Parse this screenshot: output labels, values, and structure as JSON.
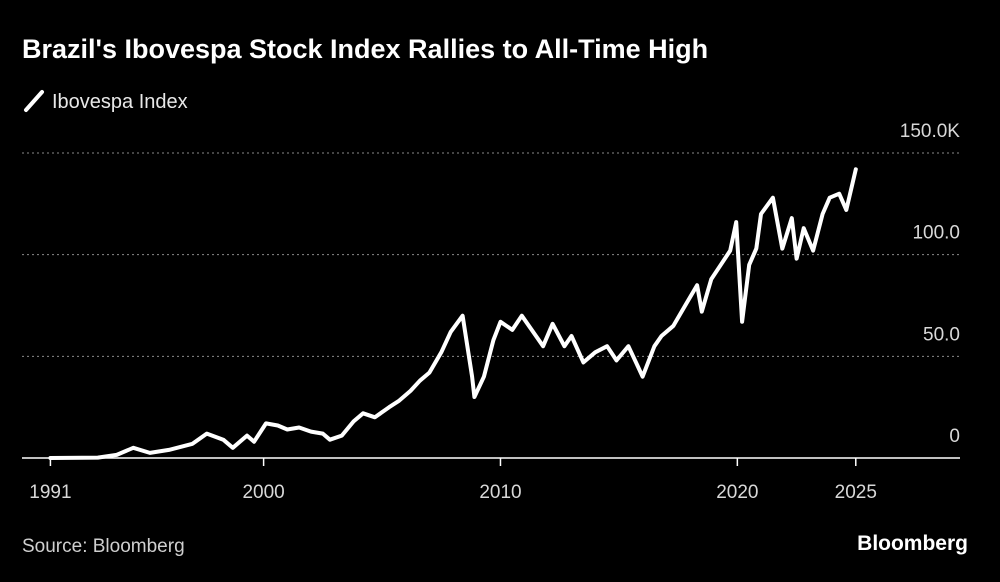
{
  "chart_data": {
    "type": "line",
    "title": "Brazil's Ibovespa Stock Index Rallies to All-Time High",
    "source": "Source: Bloomberg",
    "brand": "Bloomberg",
    "x": [
      1991.0,
      1993.0,
      1993.8,
      1994.5,
      1995.2,
      1996.0,
      1997.0,
      1997.6,
      1998.3,
      1998.7,
      1999.3,
      1999.6,
      2000.1,
      2000.6,
      2001.0,
      2001.5,
      2002.0,
      2002.5,
      2002.8,
      2003.3,
      2003.8,
      2004.2,
      2004.7,
      2005.3,
      2005.7,
      2006.2,
      2006.6,
      2007.0,
      2007.5,
      2007.9,
      2008.4,
      2008.8,
      2008.9,
      2009.3,
      2009.7,
      2010.0,
      2010.5,
      2010.9,
      2011.5,
      2011.8,
      2012.2,
      2012.7,
      2013.0,
      2013.5,
      2014.0,
      2014.5,
      2014.9,
      2015.4,
      2015.8,
      2016.0,
      2016.5,
      2016.8,
      2017.3,
      2017.8,
      2018.3,
      2018.5,
      2018.9,
      2019.3,
      2019.7,
      2019.95,
      2020.2,
      2020.5,
      2020.8,
      2021.0,
      2021.5,
      2021.9,
      2022.3,
      2022.5,
      2022.8,
      2023.2,
      2023.6,
      2023.9,
      2024.3,
      2024.6,
      2025.0
    ],
    "series": [
      {
        "name": "Ibovespa Index",
        "color": "#ffffff",
        "values": [
          0,
          0.2,
          1.5,
          5,
          2.5,
          4,
          7,
          12,
          9,
          5,
          11,
          8,
          17,
          16,
          14,
          15,
          13,
          12,
          9,
          11,
          18,
          22,
          20,
          25,
          28,
          33,
          38,
          42,
          52,
          62,
          70,
          40,
          30,
          40,
          58,
          67,
          63,
          70,
          60,
          55,
          66,
          55,
          60,
          47,
          52,
          55,
          48,
          55,
          45,
          40,
          55,
          60,
          65,
          75,
          85,
          72,
          88,
          95,
          102,
          116,
          67,
          95,
          103,
          120,
          128,
          103,
          118,
          98,
          113,
          102,
          120,
          128,
          130,
          122,
          142
        ]
      }
    ],
    "xlim": [
      1989.8,
      2029.4
    ],
    "xticks": [
      1991,
      2000,
      2010,
      2020,
      2025
    ],
    "ylim": [
      0,
      150
    ],
    "yticks": [
      0,
      {
        "value": 50,
        "label": "50.0"
      },
      {
        "value": 100,
        "label": "100.0"
      },
      {
        "value": 150,
        "label": "150.0K"
      }
    ],
    "grid": true
  }
}
